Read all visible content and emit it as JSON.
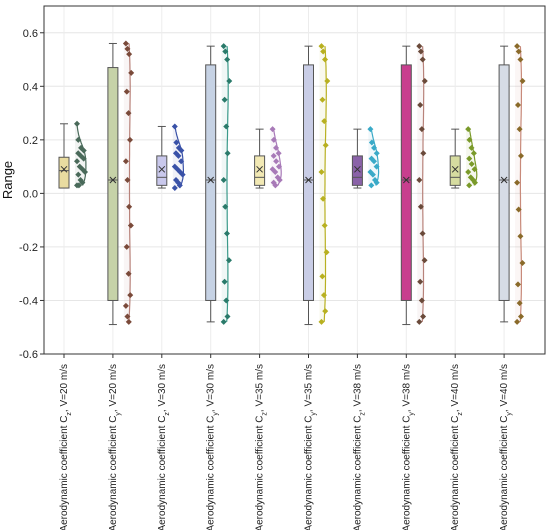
{
  "chart_data": {
    "type": "box",
    "ylabel": "Range",
    "ylim": [
      -0.6,
      0.7
    ],
    "yticks": [
      -0.6,
      -0.4,
      -0.2,
      0.0,
      0.2,
      0.4,
      0.6
    ],
    "ytick_labels": [
      "-0.6",
      "-0.4",
      "-0.2",
      "0.0",
      "0.2",
      "0.4",
      "0.6"
    ],
    "grid": true,
    "categories": [
      "Aerodynamic coefficient C_z, V=20 m/s",
      "Aerodynamic coefficient C_y, V=20 m/s",
      "Aerodynamic coefficient C_z, V=30 m/s",
      "Aerodynamic coefficient C_y, V=30 m/s",
      "Aerodynamic coefficient C_z, V=35 m/s",
      "Aerodynamic coefficient C_y, V=35 m/s",
      "Aerodynamic coefficient C_z, V=38 m/s",
      "Aerodynamic coefficient C_y, V=38 m/s",
      "Aerodynamic coefficient C_z, V=40 m/s",
      "Aerodynamic coefficient C_y, V=40 m/s"
    ],
    "series": [
      {
        "label_prefix": "Aerodynamic coefficient C",
        "label_sub": "z",
        "label_suffix": ", V=20 m/s",
        "box": {
          "q1": 0.02,
          "median": 0.085,
          "q3": 0.135,
          "whisker_low": 0.02,
          "whisker_high": 0.26,
          "mean": 0.09
        },
        "box_color": "#e9dca0",
        "line_color": "#4a6a5a",
        "point_color": "#4a6a5a",
        "points": [
          0.26,
          0.2,
          0.17,
          0.16,
          0.15,
          0.14,
          0.13,
          0.12,
          0.1,
          0.09,
          0.08,
          0.07,
          0.05,
          0.04,
          0.03,
          0.03
        ]
      },
      {
        "label_prefix": "Aerodynamic coefficient C",
        "label_sub": "y",
        "label_suffix": ", V=20 m/s",
        "box": {
          "q1": -0.4,
          "median": 0.05,
          "q3": 0.47,
          "whisker_low": -0.49,
          "whisker_high": 0.56,
          "mean": 0.05
        },
        "box_color": "#c6d2a8",
        "line_color": "#b8827a",
        "point_color": "#7a4a3a",
        "points": [
          0.56,
          0.54,
          0.52,
          0.45,
          0.38,
          0.3,
          0.2,
          0.12,
          0.05,
          -0.05,
          -0.12,
          -0.2,
          -0.3,
          -0.38,
          -0.42,
          -0.46,
          -0.48
        ]
      },
      {
        "label_prefix": "Aerodynamic coefficient C",
        "label_sub": "z",
        "label_suffix": ", V=30 m/s",
        "box": {
          "q1": 0.03,
          "median": 0.06,
          "q3": 0.14,
          "whisker_low": 0.02,
          "whisker_high": 0.25,
          "mean": 0.09
        },
        "box_color": "#c9c8ec",
        "line_color": "#3a52a8",
        "point_color": "#3a52a8",
        "points": [
          0.25,
          0.19,
          0.17,
          0.16,
          0.15,
          0.14,
          0.12,
          0.1,
          0.09,
          0.08,
          0.07,
          0.05,
          0.04,
          0.03,
          0.02
        ]
      },
      {
        "label_prefix": "Aerodynamic coefficient C",
        "label_sub": "y",
        "label_suffix": ", V=30 m/s",
        "box": {
          "q1": -0.4,
          "median": 0.05,
          "q3": 0.48,
          "whisker_low": -0.48,
          "whisker_high": 0.55,
          "mean": 0.05
        },
        "box_color": "#c6d2e4",
        "line_color": "#3a9a8a",
        "point_color": "#2a7a6a",
        "points": [
          0.55,
          0.53,
          0.5,
          0.42,
          0.35,
          0.25,
          0.15,
          0.05,
          -0.05,
          -0.15,
          -0.25,
          -0.33,
          -0.4,
          -0.46,
          -0.48
        ]
      },
      {
        "label_prefix": "Aerodynamic coefficient C",
        "label_sub": "z",
        "label_suffix": ", V=35 m/s",
        "box": {
          "q1": 0.03,
          "median": 0.06,
          "q3": 0.14,
          "whisker_low": 0.02,
          "whisker_high": 0.24,
          "mean": 0.09
        },
        "box_color": "#f2e9b4",
        "line_color": "#a87ab8",
        "point_color": "#a87ab8",
        "points": [
          0.24,
          0.2,
          0.17,
          0.15,
          0.14,
          0.12,
          0.1,
          0.09,
          0.08,
          0.06,
          0.05,
          0.04,
          0.03
        ]
      },
      {
        "label_prefix": "Aerodynamic coefficient C",
        "label_sub": "y",
        "label_suffix": ", V=35 m/s",
        "box": {
          "q1": -0.4,
          "median": 0.05,
          "q3": 0.48,
          "whisker_low": -0.49,
          "whisker_high": 0.55,
          "mean": 0.05
        },
        "box_color": "#c9cde6",
        "line_color": "#b8b020",
        "point_color": "#b8b020",
        "points": [
          0.55,
          0.53,
          0.5,
          0.42,
          0.35,
          0.27,
          0.18,
          0.08,
          -0.02,
          -0.12,
          -0.22,
          -0.31,
          -0.38,
          -0.44,
          -0.48
        ]
      },
      {
        "label_prefix": "Aerodynamic coefficient C",
        "label_sub": "z",
        "label_suffix": ", V=38 m/s",
        "box": {
          "q1": 0.03,
          "median": 0.06,
          "q3": 0.14,
          "whisker_low": 0.02,
          "whisker_high": 0.24,
          "mean": 0.09
        },
        "box_color": "#8a62a8",
        "line_color": "#3aaac8",
        "point_color": "#3aaac8",
        "points": [
          0.24,
          0.19,
          0.17,
          0.15,
          0.13,
          0.12,
          0.1,
          0.08,
          0.07,
          0.05,
          0.04,
          0.03
        ]
      },
      {
        "label_prefix": "Aerodynamic coefficient C",
        "label_sub": "y",
        "label_suffix": ", V=38 m/s",
        "box": {
          "q1": -0.4,
          "median": 0.05,
          "q3": 0.48,
          "whisker_low": -0.49,
          "whisker_high": 0.55,
          "mean": 0.05
        },
        "box_color": "#c83e8e",
        "line_color": "#b8827a",
        "point_color": "#6a4a3a",
        "points": [
          0.55,
          0.53,
          0.5,
          0.42,
          0.33,
          0.24,
          0.15,
          0.05,
          -0.05,
          -0.15,
          -0.25,
          -0.33,
          -0.4,
          -0.46,
          -0.48
        ]
      },
      {
        "label_prefix": "Aerodynamic coefficient C",
        "label_sub": "z",
        "label_suffix": ", V=40 m/s",
        "box": {
          "q1": 0.03,
          "median": 0.06,
          "q3": 0.14,
          "whisker_low": 0.02,
          "whisker_high": 0.24,
          "mean": 0.09
        },
        "box_color": "#d6dca0",
        "line_color": "#7a9a2a",
        "point_color": "#7a9a2a",
        "points": [
          0.24,
          0.2,
          0.17,
          0.15,
          0.13,
          0.11,
          0.09,
          0.08,
          0.06,
          0.05,
          0.04,
          0.03
        ]
      },
      {
        "label_prefix": "Aerodynamic coefficient C",
        "label_sub": "y",
        "label_suffix": ", V=40 m/s",
        "box": {
          "q1": -0.4,
          "median": 0.05,
          "q3": 0.48,
          "whisker_low": -0.48,
          "whisker_high": 0.55,
          "mean": 0.05
        },
        "box_color": "#d6dce6",
        "line_color": "#c88a7a",
        "point_color": "#8a6a2a",
        "points": [
          0.55,
          0.53,
          0.5,
          0.42,
          0.33,
          0.24,
          0.14,
          0.04,
          -0.06,
          -0.16,
          -0.26,
          -0.34,
          -0.41,
          -0.46,
          -0.48
        ]
      }
    ]
  }
}
